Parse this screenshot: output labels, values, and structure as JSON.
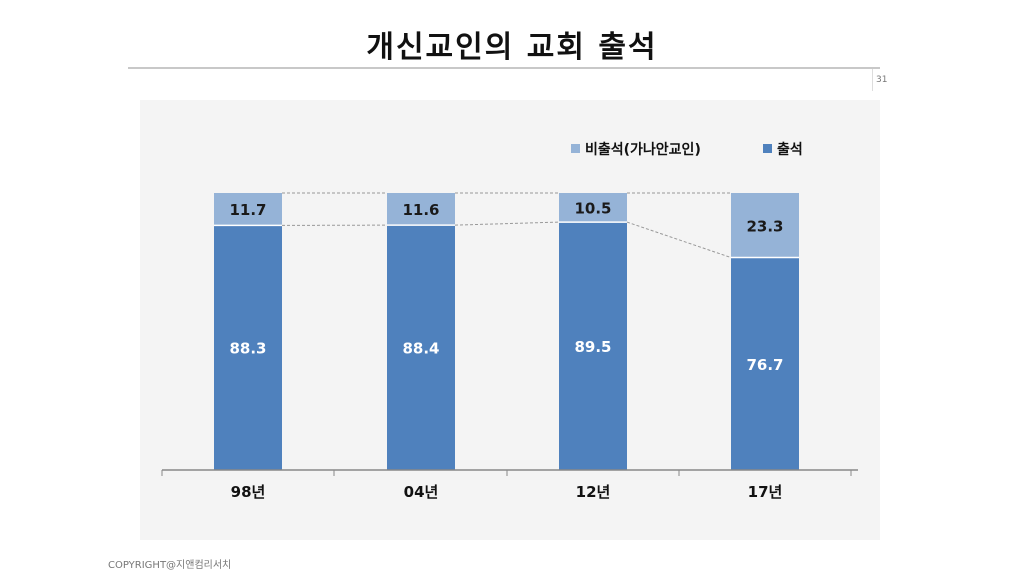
{
  "title": "개신교인의 교회 출석",
  "page_number": "31",
  "copyright": "COPYRIGHT@지앤컴리서치",
  "chart_data": {
    "type": "bar",
    "stacked": true,
    "title": "개신교인의 교회 출석",
    "categories": [
      "98년",
      "04년",
      "12년",
      "17년"
    ],
    "series": [
      {
        "name": "출석",
        "values": [
          88.3,
          88.4,
          89.5,
          76.7
        ],
        "color": "#4f81bd"
      },
      {
        "name": "비출석(가나안교인)",
        "values": [
          11.7,
          11.6,
          10.5,
          23.3
        ],
        "color": "#95b3d7"
      }
    ],
    "legend_order": [
      "비출석(가나안교인)",
      "출석"
    ],
    "legend_position": "top-right",
    "ylim": [
      0,
      100
    ],
    "grid": false,
    "xlabel": "",
    "ylabel": ""
  }
}
